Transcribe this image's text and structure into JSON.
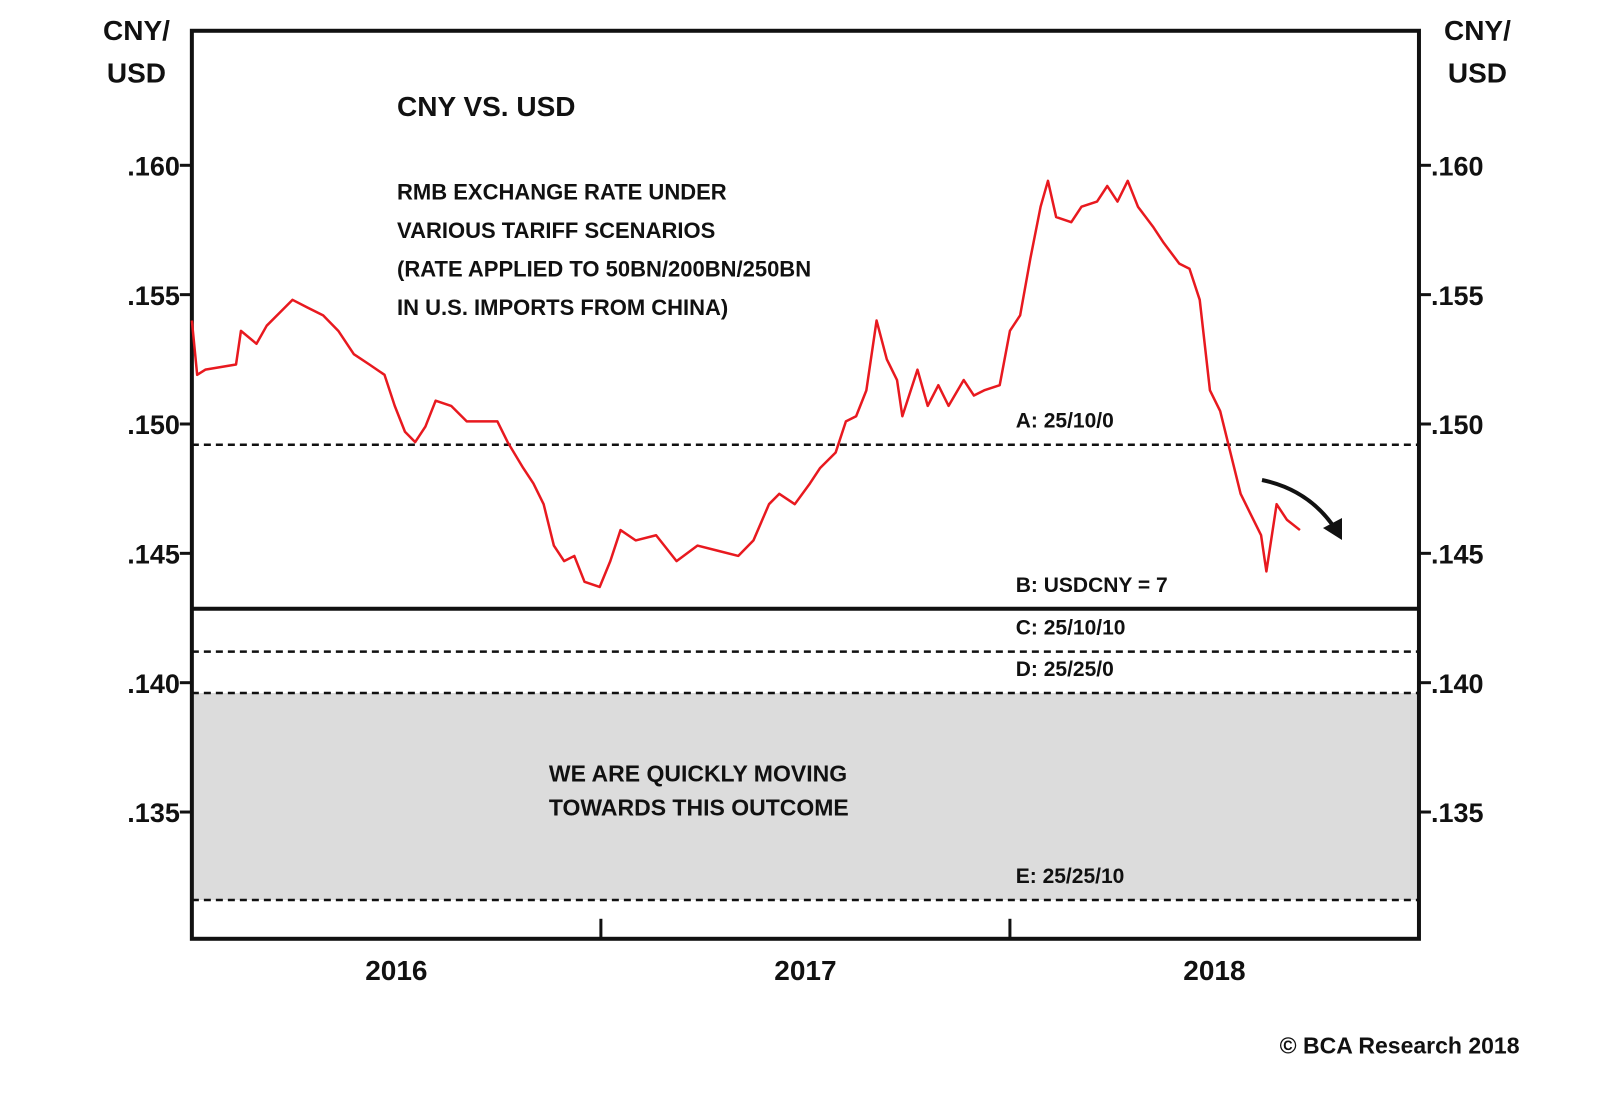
{
  "chart_data": {
    "type": "line",
    "title": "CNY VS. USD",
    "subtitle": [
      "RMB EXCHANGE RATE UNDER",
      "VARIOUS TARIFF SCENARIOS",
      "(RATE APPLIED TO 50BN/200BN/250BN",
      "IN U.S. IMPORTS FROM CHINA)"
    ],
    "ylabel": [
      "CNY/",
      "USD"
    ],
    "mirror_y_axis": true,
    "source": "© BCA Research 2018",
    "x": [
      2016.0,
      2016.013,
      2016.033,
      2016.108,
      2016.12,
      2016.158,
      2016.183,
      2016.221,
      2016.246,
      2016.283,
      2016.321,
      2016.358,
      2016.396,
      2016.434,
      2016.471,
      2016.496,
      2016.521,
      2016.546,
      2016.571,
      2016.596,
      2016.634,
      2016.672,
      2016.709,
      2016.747,
      2016.772,
      2016.81,
      2016.835,
      2016.86,
      2016.885,
      2016.91,
      2016.935,
      2016.96,
      2016.997,
      2017.023,
      2017.048,
      2017.085,
      2017.135,
      2017.185,
      2017.236,
      2017.286,
      2017.336,
      2017.373,
      2017.411,
      2017.436,
      2017.474,
      2017.511,
      2017.536,
      2017.574,
      2017.599,
      2017.624,
      2017.649,
      2017.674,
      2017.699,
      2017.724,
      2017.737,
      2017.774,
      2017.799,
      2017.825,
      2017.85,
      2017.887,
      2017.912,
      2017.937,
      2017.975,
      2018.0,
      2018.025,
      2018.05,
      2018.075,
      2018.093,
      2018.113,
      2018.15,
      2018.175,
      2018.213,
      2018.238,
      2018.263,
      2018.288,
      2018.313,
      2018.351,
      2018.376,
      2018.414,
      2018.439,
      2018.464,
      2018.489,
      2018.514,
      2018.539,
      2018.564,
      2018.589,
      2018.614,
      2018.627,
      2018.652,
      2018.677,
      2018.709
    ],
    "series": [
      {
        "name": "CNY/USD",
        "color": "#e8191f",
        "values": [
          0.154,
          0.1519,
          0.1521,
          0.1523,
          0.1536,
          0.1531,
          0.1538,
          0.1544,
          0.1548,
          0.1545,
          0.1542,
          0.1536,
          0.1527,
          0.1523,
          0.1519,
          0.1507,
          0.1497,
          0.1493,
          0.1499,
          0.1509,
          0.1507,
          0.1501,
          0.1501,
          0.1501,
          0.1493,
          0.1483,
          0.1477,
          0.1469,
          0.1453,
          0.1447,
          0.1449,
          0.1439,
          0.1437,
          0.1447,
          0.1459,
          0.1455,
          0.1457,
          0.1447,
          0.1453,
          0.1451,
          0.1449,
          0.1455,
          0.1469,
          0.1473,
          0.1469,
          0.1477,
          0.1483,
          0.1489,
          0.1501,
          0.1503,
          0.1513,
          0.154,
          0.1525,
          0.1517,
          0.1503,
          0.1521,
          0.1507,
          0.1515,
          0.1507,
          0.1517,
          0.1511,
          0.1513,
          0.1515,
          0.1536,
          0.1542,
          0.1564,
          0.1584,
          0.1594,
          0.158,
          0.1578,
          0.1584,
          0.1586,
          0.1592,
          0.1586,
          0.1594,
          0.1584,
          0.1576,
          0.157,
          0.1562,
          0.156,
          0.1548,
          0.1513,
          0.1505,
          0.1489,
          0.1473,
          0.1465,
          0.1457,
          0.1443,
          0.1469,
          0.1463,
          0.1459
        ]
      }
    ],
    "xlim": [
      2016,
      2019
    ],
    "xticks": [
      {
        "value": 2016.5,
        "label": "2016"
      },
      {
        "value": 2017.5,
        "label": "2017"
      },
      {
        "value": 2018.5,
        "label": "2018"
      }
    ],
    "ylim": [
      0.1301,
      0.1652
    ],
    "yticks": [
      {
        "value": 0.135,
        "label": ".135"
      },
      {
        "value": 0.14,
        "label": ".140"
      },
      {
        "value": 0.145,
        "label": ".145"
      },
      {
        "value": 0.15,
        "label": ".150"
      },
      {
        "value": 0.155,
        "label": ".155"
      },
      {
        "value": 0.16,
        "label": ".160"
      }
    ],
    "reference_lines": [
      {
        "label": "A: 25/10/0",
        "value": 0.1492,
        "style": "dashed"
      },
      {
        "label": "B: USDCNY = 7",
        "value": 0.142857,
        "style": "solid"
      },
      {
        "label": "C: 25/10/10",
        "value": 0.1412,
        "style": "dashed"
      },
      {
        "label": "D: 25/25/0",
        "value": 0.1396,
        "style": "dashed"
      },
      {
        "label": "E: 25/25/10",
        "value": 0.1316,
        "style": "dashed"
      }
    ],
    "band": {
      "ymin": 0.1316,
      "ymax": 0.1396,
      "color": "#dcdcdc",
      "text": [
        "WE ARE QUICKLY MOVING",
        "TOWARDS THIS OUTCOME"
      ]
    }
  }
}
